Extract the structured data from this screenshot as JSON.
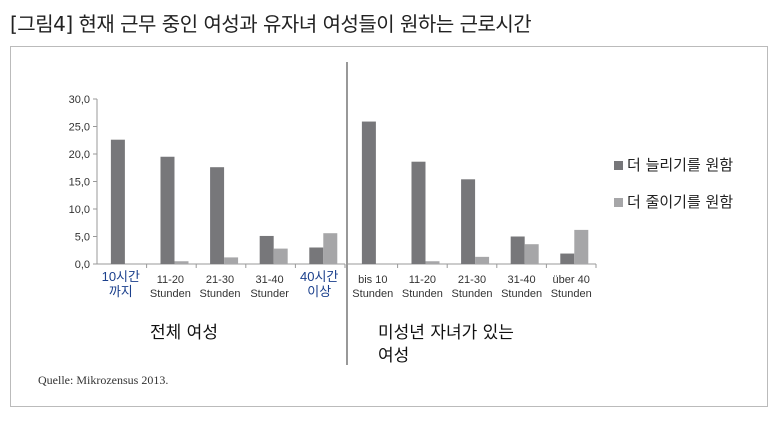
{
  "title": "[그림4] 현재 근무 중인 여성과 유자녀 여성들이 원하는 근로시간",
  "source": "Quelle: Mikrozensus 2013.",
  "chart_data": [
    {
      "type": "bar",
      "group_label": "전체 여성",
      "categories": [
        [
          "10시간",
          "까지"
        ],
        [
          "11-20",
          "Stunden"
        ],
        [
          "21-30",
          "Stunden"
        ],
        [
          "31-40",
          "Stunder"
        ],
        [
          "40시간",
          "이상"
        ]
      ],
      "series": [
        {
          "name": "더 늘리기를 원함",
          "color": "#77777a",
          "values": [
            22.6,
            19.5,
            17.6,
            5.1,
            3.0
          ]
        },
        {
          "name": "더 줄이기를 원함",
          "color": "#a6a6a8",
          "values": [
            0.0,
            0.5,
            1.2,
            2.8,
            5.6
          ]
        }
      ],
      "ylim": [
        0,
        30
      ],
      "yticks": [
        "0,0",
        "5,0",
        "10,0",
        "15,0",
        "20,0",
        "25,0",
        "30,0"
      ]
    },
    {
      "type": "bar",
      "group_label": "미성년 자녀가 있는 여성",
      "categories": [
        [
          "bis 10",
          "Stunden"
        ],
        [
          "11-20",
          "Stunden"
        ],
        [
          "21-30",
          "Stunden"
        ],
        [
          "31-40",
          "Stunden"
        ],
        [
          "über 40",
          "Stunden"
        ]
      ],
      "series": [
        {
          "name": "더 늘리기를 원함",
          "color": "#77777a",
          "values": [
            25.9,
            18.6,
            15.4,
            5.0,
            1.9
          ]
        },
        {
          "name": "더 줄이기를 원함",
          "color": "#a6a6a8",
          "values": [
            0.0,
            0.5,
            1.3,
            3.6,
            6.2
          ]
        }
      ],
      "ylim": [
        0,
        30
      ]
    }
  ],
  "legend": [
    {
      "label": "더 늘리기를 원함",
      "color": "#77777a"
    },
    {
      "label": "더 줄이기를 원함",
      "color": "#a6a6a8"
    }
  ]
}
